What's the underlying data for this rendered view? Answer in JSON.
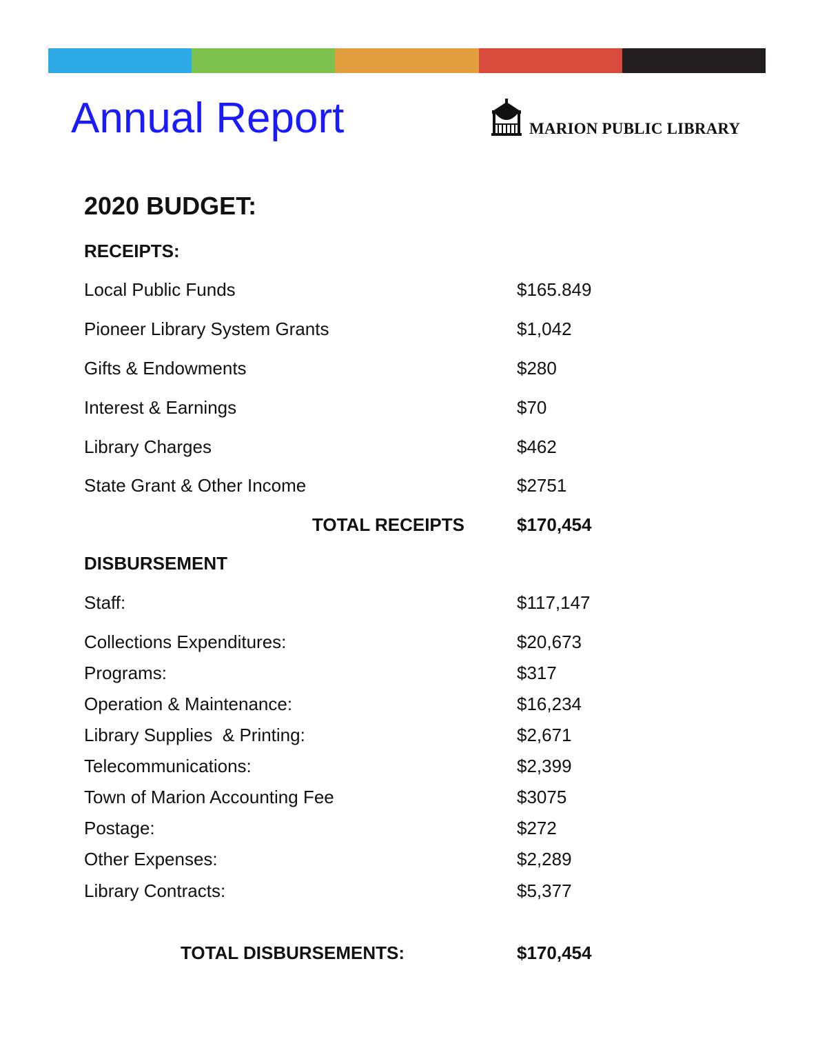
{
  "header": {
    "color_bar": [
      "#2eaae6",
      "#7dc24e",
      "#e29d3c",
      "#d84b3c",
      "#231f20"
    ],
    "title": "Annual Report",
    "title_color": "#1a1aff",
    "logo_text": "MARION PUBLIC LIBRARY",
    "logo_icon": "gazebo-icon"
  },
  "budget": {
    "heading": "2020 BUDGET:",
    "receipts_heading": "RECEIPTS:",
    "receipts": [
      {
        "label": "Local Public Funds",
        "value": "$165.849"
      },
      {
        "label": "Pioneer Library System Grants",
        "value": "$1,042"
      },
      {
        "label": "Gifts & Endowments",
        "value": "$280"
      },
      {
        "label": "Interest & Earnings",
        "value": "$70"
      },
      {
        "label": "Library Charges",
        "value": "$462"
      },
      {
        "label": "State Grant & Other Income",
        "value": "$2751"
      }
    ],
    "total_receipts_label": "TOTAL RECEIPTS",
    "total_receipts_value": "$170,454",
    "disbursement_heading": "DISBURSEMENT",
    "disbursements": [
      {
        "label": "Staff:",
        "value": "$117,147"
      },
      {
        "label": "Collections Expenditures:",
        "value": "$20,673"
      },
      {
        "label": "Programs:",
        "value": "$317"
      },
      {
        "label": "Operation & Maintenance:",
        "value": "$16,234"
      },
      {
        "label": "Library Supplies  & Printing:",
        "value": "$2,671"
      },
      {
        "label": "Telecommunications:",
        "value": "$2,399"
      },
      {
        "label": "Town of Marion Accounting Fee",
        "value": "$3075"
      },
      {
        "label": "Postage:",
        "value": "$272"
      },
      {
        "label": "Other Expenses:",
        "value": "$2,289"
      },
      {
        "label": "Library Contracts:",
        "value": "$5,377"
      }
    ],
    "total_disbursements_label": "TOTAL DISBURSEMENTS:",
    "total_disbursements_value": "$170,454"
  }
}
